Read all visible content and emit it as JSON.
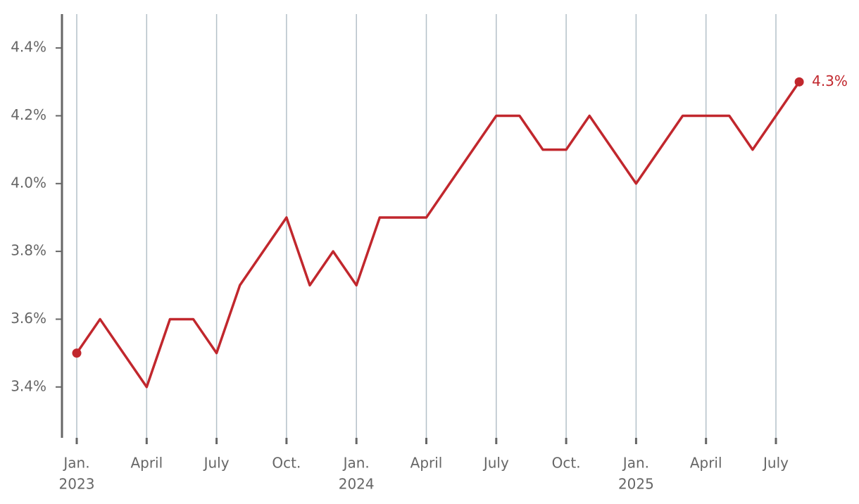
{
  "chart_data": {
    "type": "line",
    "categories": [
      [
        "Jan.",
        "2023"
      ],
      null,
      null,
      "April",
      null,
      null,
      "July",
      null,
      null,
      "Oct.",
      null,
      null,
      [
        "Jan.",
        "2024"
      ],
      null,
      null,
      "April",
      null,
      null,
      "July",
      null,
      null,
      "Oct.",
      null,
      null,
      [
        "Jan.",
        "2025"
      ],
      null,
      null,
      "April",
      null,
      null,
      "July",
      null
    ],
    "series": [
      {
        "color": "#c1272d",
        "values": [
          3.5,
          3.6,
          3.5,
          3.4,
          3.6,
          3.6,
          3.5,
          3.7,
          3.8,
          3.9,
          3.7,
          3.8,
          3.7,
          3.9,
          3.9,
          3.9,
          4.0,
          4.1,
          4.2,
          4.2,
          4.1,
          4.1,
          4.2,
          4.1,
          4.0,
          4.1,
          4.2,
          4.2,
          4.2,
          4.1,
          4.2,
          4.3
        ],
        "value_labels": [
          null,
          null,
          null,
          null,
          null,
          null,
          null,
          null,
          null,
          null,
          null,
          null,
          null,
          null,
          null,
          null,
          null,
          null,
          null,
          null,
          null,
          null,
          null,
          null,
          null,
          null,
          null,
          null,
          null,
          null,
          null,
          "4.3%"
        ]
      }
    ],
    "ylim": [
      3.25,
      4.5
    ],
    "yticks": [
      {
        "value": 3.4,
        "label": "3.4%"
      },
      {
        "value": 3.6,
        "label": "3.6%"
      },
      {
        "value": 3.8,
        "label": "3.8%"
      },
      {
        "value": 4.0,
        "label": "4.0%"
      },
      {
        "value": 4.2,
        "label": "4.2%"
      },
      {
        "value": 4.4,
        "label": "4.4%"
      }
    ],
    "grid": true
  }
}
